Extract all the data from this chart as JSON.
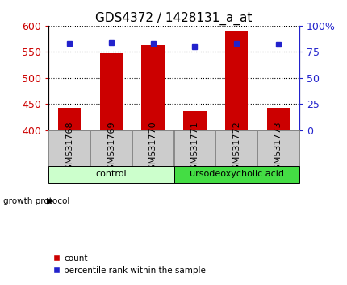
{
  "title": "GDS4372 / 1428131_a_at",
  "samples": [
    "GSM531768",
    "GSM531769",
    "GSM531770",
    "GSM531771",
    "GSM531772",
    "GSM531773"
  ],
  "counts": [
    443,
    548,
    563,
    436,
    590,
    443
  ],
  "percentiles": [
    83,
    84,
    83,
    80,
    83,
    82
  ],
  "ylim_left": [
    400,
    600
  ],
  "ylim_right": [
    0,
    100
  ],
  "yticks_left": [
    400,
    450,
    500,
    550,
    600
  ],
  "yticks_right": [
    0,
    25,
    50,
    75,
    100
  ],
  "bar_color": "#cc0000",
  "marker_color": "#2222cc",
  "grid_color": "#000000",
  "bar_width": 0.55,
  "groups": [
    {
      "label": "control",
      "indices": [
        0,
        1,
        2
      ],
      "color": "#ccffcc"
    },
    {
      "label": "ursodeoxycholic acid",
      "indices": [
        3,
        4,
        5
      ],
      "color": "#44dd44"
    }
  ],
  "growth_protocol_label": "growth protocol",
  "legend_count_label": "count",
  "legend_percentile_label": "percentile rank within the sample",
  "sample_label_fontsize": 8,
  "title_fontsize": 11,
  "tick_fontsize": 9,
  "left_tick_color": "#cc0000",
  "right_tick_color": "#2222cc",
  "background_color": "#ffffff",
  "plot_background": "#ffffff",
  "sample_box_color": "#cccccc",
  "sample_box_edge": "#888888"
}
